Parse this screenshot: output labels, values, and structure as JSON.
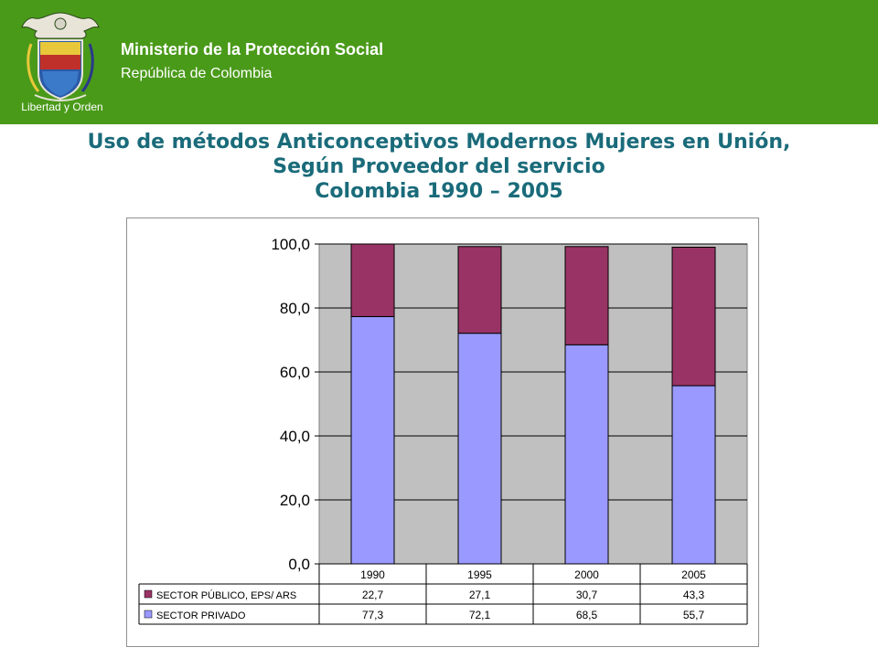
{
  "header": {
    "ministry": "Ministerio de la Protección Social",
    "country": "República de Colombia",
    "motto": "Libertad y Orden",
    "color": "#4a9a1a"
  },
  "title": {
    "line1": "Uso de métodos Anticonceptivos Modernos Mujeres en Unión,",
    "line2": "Según Proveedor del servicio",
    "line3": "Colombia 1990 – 2005",
    "color": "#1a6b7a"
  },
  "chart_data": {
    "type": "bar",
    "stacked": true,
    "categories": [
      "1990",
      "1995",
      "2000",
      "2005"
    ],
    "series": [
      {
        "name": "SECTOR PRIVADO",
        "values": [
          77.3,
          72.1,
          68.5,
          55.7
        ],
        "display": [
          "77,3",
          "72,1",
          "68,5",
          "55,7"
        ],
        "color": "#9999ff"
      },
      {
        "name": "SECTOR PÚBLICO, EPS/ ARS",
        "values": [
          22.7,
          27.1,
          30.7,
          43.3
        ],
        "display": [
          "22,7",
          "27,1",
          "30,7",
          "43,3"
        ],
        "color": "#993366"
      }
    ],
    "ylim": [
      0,
      100
    ],
    "yticks": [
      "0,0",
      "20,0",
      "40,0",
      "60,0",
      "80,0",
      "100,0"
    ],
    "grid": true,
    "legend": "data-table-below",
    "plot_background": "#c0c0c0"
  }
}
